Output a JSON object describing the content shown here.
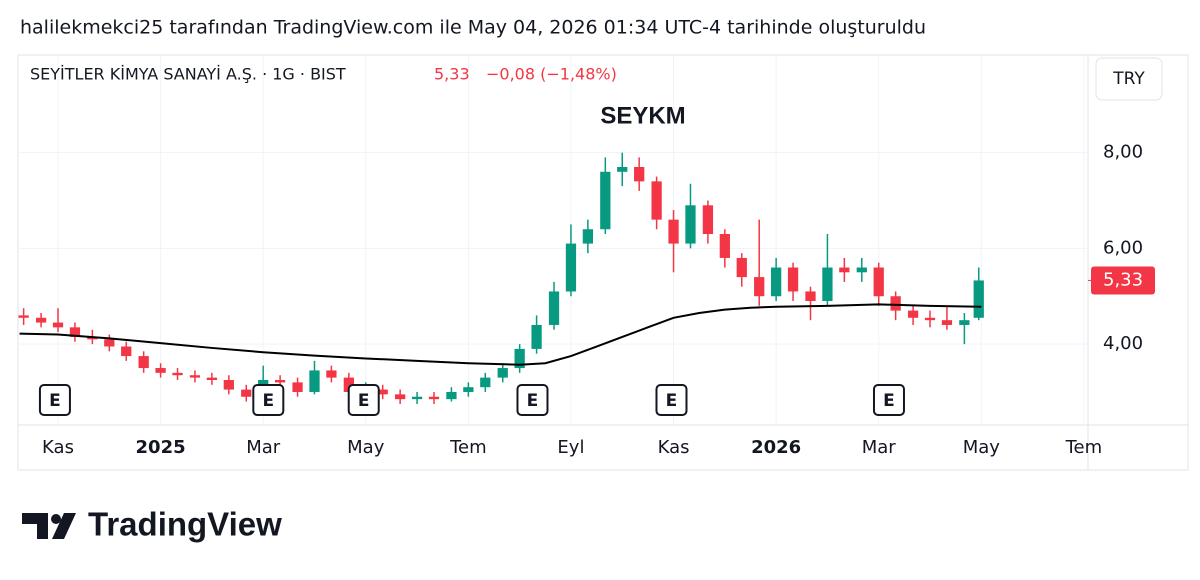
{
  "caption": "halilekmekci25 tarafından TradingView.com ile May 04, 2026 01:34 UTC-4 tarihinde oluşturuldu",
  "brand": "TradingView",
  "chart_data": {
    "type": "candlestick",
    "title": "SEYKM",
    "symbol": "SEYİTLER KİMYA SANAYİ A.Ş. · 1G · BIST",
    "last_price": {
      "value": 5.33,
      "label": "5,33"
    },
    "change": "−0,08 (−1,48%)",
    "currency": "TRY",
    "up_color": "#089981",
    "down_color": "#f23645",
    "grid": true,
    "x": [
      -0.67,
      -0.33,
      0,
      0.33,
      0.67,
      1,
      1.33,
      1.67,
      2,
      2.33,
      2.67,
      3,
      3.33,
      3.67,
      4,
      4.33,
      4.67,
      5,
      5.33,
      5.67,
      6,
      6.33,
      6.67,
      7,
      7.33,
      7.67,
      8,
      8.33,
      8.67,
      9,
      9.33,
      9.67,
      10,
      10.33,
      10.67,
      11,
      11.33,
      11.67,
      12,
      12.33,
      12.67,
      13,
      13.33,
      13.67,
      14,
      14.33,
      14.67,
      15,
      15.33,
      15.67,
      16,
      16.33,
      16.67,
      17,
      17.33,
      17.67,
      17.95
    ],
    "open": [
      4.6,
      4.55,
      4.45,
      4.35,
      4.15,
      4.1,
      3.95,
      3.75,
      3.5,
      3.4,
      3.35,
      3.3,
      3.25,
      3.05,
      2.9,
      3.25,
      3.2,
      3.0,
      3.45,
      3.3,
      3.0,
      3.05,
      2.95,
      2.85,
      2.9,
      2.85,
      3.0,
      3.1,
      3.3,
      3.5,
      3.9,
      4.4,
      5.1,
      6.1,
      6.4,
      7.6,
      7.7,
      7.4,
      6.6,
      6.1,
      6.9,
      6.3,
      5.8,
      5.4,
      5.0,
      5.6,
      5.1,
      4.9,
      5.6,
      5.5,
      5.6,
      5.0,
      4.7,
      4.55,
      4.5,
      4.4,
      4.55
    ],
    "high": [
      4.75,
      4.65,
      4.75,
      4.45,
      4.3,
      4.2,
      4.05,
      3.85,
      3.6,
      3.5,
      3.45,
      3.4,
      3.35,
      3.15,
      3.55,
      3.35,
      3.3,
      3.65,
      3.55,
      3.4,
      3.2,
      3.15,
      3.05,
      3.0,
      3.0,
      3.1,
      3.2,
      3.4,
      3.6,
      4.0,
      4.6,
      5.3,
      6.5,
      6.6,
      7.9,
      8.0,
      7.9,
      7.5,
      6.8,
      7.35,
      7.0,
      6.4,
      5.9,
      6.6,
      5.8,
      5.7,
      5.2,
      6.3,
      5.8,
      5.8,
      5.7,
      5.1,
      4.8,
      4.7,
      4.8,
      4.65,
      5.6
    ],
    "low": [
      4.4,
      4.35,
      4.25,
      4.05,
      4.0,
      3.85,
      3.65,
      3.4,
      3.3,
      3.25,
      3.2,
      3.15,
      2.95,
      2.8,
      2.85,
      3.05,
      2.9,
      2.95,
      3.2,
      2.9,
      2.9,
      2.85,
      2.75,
      2.75,
      2.75,
      2.8,
      2.9,
      3.0,
      3.2,
      3.4,
      3.8,
      4.3,
      5.0,
      5.9,
      6.3,
      7.3,
      7.2,
      6.4,
      5.5,
      6.0,
      6.1,
      5.6,
      5.2,
      4.8,
      4.9,
      4.9,
      4.5,
      4.8,
      5.3,
      5.3,
      4.8,
      4.5,
      4.4,
      4.35,
      4.3,
      4.0,
      4.5
    ],
    "close": [
      4.55,
      4.45,
      4.35,
      4.15,
      4.1,
      3.95,
      3.75,
      3.5,
      3.4,
      3.35,
      3.3,
      3.25,
      3.05,
      2.9,
      3.25,
      3.2,
      3.0,
      3.45,
      3.3,
      3.0,
      3.05,
      2.95,
      2.85,
      2.9,
      2.85,
      3.0,
      3.1,
      3.3,
      3.5,
      3.9,
      4.4,
      5.1,
      6.1,
      6.4,
      7.6,
      7.7,
      7.4,
      6.6,
      6.1,
      6.9,
      6.3,
      5.8,
      5.4,
      5.0,
      5.6,
      5.1,
      4.9,
      5.6,
      5.5,
      5.6,
      5.0,
      4.7,
      4.55,
      4.5,
      4.4,
      4.5,
      5.33
    ],
    "moving_average": {
      "color": "#000000",
      "x": [
        -0.75,
        0,
        1,
        2,
        3,
        4,
        5,
        6,
        7,
        8,
        9,
        9.5,
        10,
        10.5,
        11,
        11.5,
        12,
        12.5,
        13,
        13.5,
        14,
        15,
        16,
        17,
        18
      ],
      "values": [
        4.22,
        4.2,
        4.12,
        4.02,
        3.92,
        3.83,
        3.76,
        3.7,
        3.65,
        3.6,
        3.57,
        3.6,
        3.75,
        3.95,
        4.15,
        4.35,
        4.55,
        4.65,
        4.72,
        4.76,
        4.78,
        4.8,
        4.83,
        4.8,
        4.78
      ]
    },
    "events": [
      {
        "x": -0.06,
        "label": "E"
      },
      {
        "x": 4.1,
        "label": "E"
      },
      {
        "x": 5.96,
        "label": "E"
      },
      {
        "x": 9.25,
        "label": "E"
      },
      {
        "x": 11.96,
        "label": "E"
      },
      {
        "x": 16.2,
        "label": "E"
      }
    ],
    "xlim": [
      -0.78,
      20.08
    ],
    "xticks": [
      {
        "value": 0,
        "label": "Kas"
      },
      {
        "value": 2,
        "label": "2025"
      },
      {
        "value": 4,
        "label": "Mar"
      },
      {
        "value": 6,
        "label": "May"
      },
      {
        "value": 8,
        "label": "Tem"
      },
      {
        "value": 10,
        "label": "Eyl"
      },
      {
        "value": 12,
        "label": "Kas"
      },
      {
        "value": 14,
        "label": "2026"
      },
      {
        "value": 16,
        "label": "Mar"
      },
      {
        "value": 18,
        "label": "May"
      },
      {
        "value": 20,
        "label": "Tem"
      }
    ],
    "ylim": [
      2.31,
      10.04
    ],
    "yticks": [
      {
        "value": 4,
        "label": "4,00"
      },
      {
        "value": 6,
        "label": "6,00"
      },
      {
        "value": 8,
        "label": "8,00"
      }
    ]
  }
}
